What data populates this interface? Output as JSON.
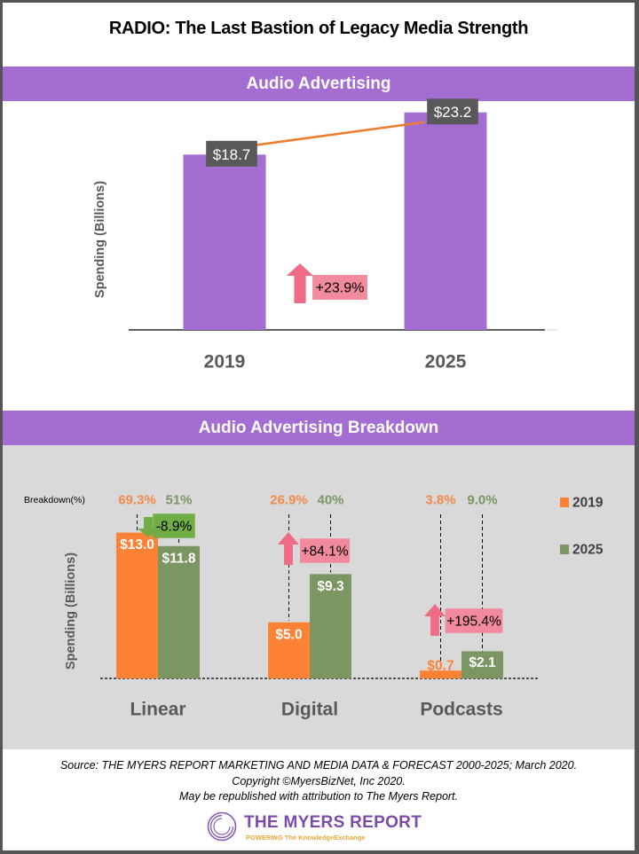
{
  "title": "RADIO: The Last Bastion of Legacy Media Strength",
  "colors": {
    "band": "#a46dd1",
    "bar_top": "#a46dd1",
    "trend_line": "#ed7d31",
    "label_box": "#595959",
    "up_arrow": "#f06b84",
    "up_box": "#f08a9c",
    "down_arrow": "#70ad47",
    "down_box": "#70ad47",
    "series_2019": "#fd8236",
    "series_2025": "#7b9563",
    "panel_bg": "#d9d9d9",
    "pct_2019": "#f28a4a",
    "pct_2025": "#7b9563"
  },
  "chart_data": [
    {
      "type": "bar",
      "section_title": "Audio Advertising",
      "title": "Audio Advertising",
      "ylabel": "Spending (Billions)",
      "xlabel": "",
      "categories": [
        "2019",
        "2025"
      ],
      "values": [
        18.7,
        23.2
      ],
      "value_labels": [
        "$18.7",
        "$23.2"
      ],
      "ylim": [
        0,
        24.5
      ],
      "grid": false,
      "trend_line": true,
      "change": {
        "label": "+23.9%",
        "direction": "up"
      }
    },
    {
      "type": "bar",
      "section_title": "Audio Advertising Breakdown",
      "title": "Audio Advertising Breakdown",
      "ylabel": "Spending (Billions)",
      "xlabel": "",
      "breakdown_label": "Breakdown(%)",
      "categories": [
        "Linear",
        "Digital",
        "Podcasts"
      ],
      "series": [
        {
          "name": "2019",
          "values": [
            13.0,
            5.0,
            0.7
          ],
          "value_labels": [
            "$13.0",
            "$5.0",
            "$0.7"
          ],
          "share_labels": [
            "69.3%",
            "26.9%",
            "3.8%"
          ]
        },
        {
          "name": "2025",
          "values": [
            11.8,
            9.3,
            2.1
          ],
          "value_labels": [
            "$11.8",
            "$9.3",
            "$2.1"
          ],
          "share_labels": [
            "51%",
            "40%",
            "9.0%"
          ]
        }
      ],
      "changes": [
        {
          "label": "-8.9%",
          "direction": "down"
        },
        {
          "label": "+84.1%",
          "direction": "up"
        },
        {
          "label": "+195.4%",
          "direction": "up"
        }
      ],
      "ylim": [
        0,
        13.6
      ],
      "grid": false,
      "legend": {
        "position": "right",
        "entries": [
          "2019",
          "2025"
        ]
      }
    }
  ],
  "footer": {
    "source": "Source: THE MYERS REPORT MARKETING AND MEDIA DATA & FORECAST 2000-2025; March 2020.",
    "copyright": "Copyright ©MyersBizNet, Inc 2020.",
    "republish": "May be republished with attribution to The Myers Report."
  },
  "logo": {
    "title": "THE MYERS REPORT",
    "tagline": "POWERING The KnowledgeExchange"
  }
}
